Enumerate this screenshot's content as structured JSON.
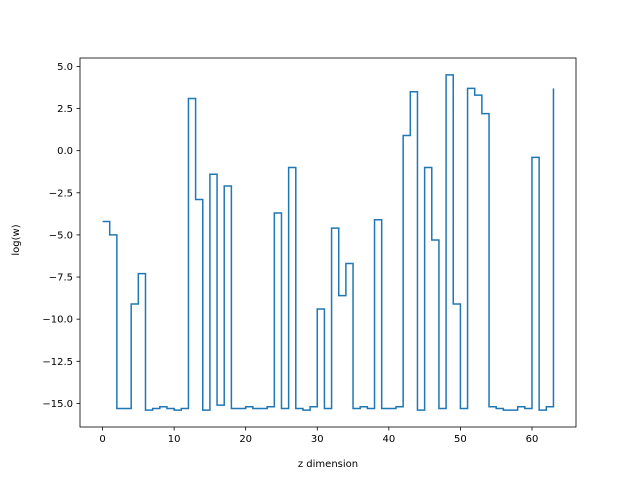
{
  "chart_data": {
    "type": "line",
    "drawstyle": "steps-post",
    "xlabel": "z dimension",
    "ylabel": "log(w)",
    "xlim": [
      -3.15,
      66.15
    ],
    "ylim": [
      -16.4,
      5.5
    ],
    "xticks": [
      0,
      10,
      20,
      30,
      40,
      50,
      60
    ],
    "yticks": [
      -15.0,
      -12.5,
      -10.0,
      -7.5,
      -5.0,
      -2.5,
      0.0,
      2.5,
      5.0
    ],
    "xtick_labels": [
      "0",
      "10",
      "20",
      "30",
      "40",
      "50",
      "60"
    ],
    "ytick_labels": [
      "−15.0",
      "−12.5",
      "−10.0",
      "−7.5",
      "−5.0",
      "−2.5",
      "0.0",
      "2.5",
      "5.0"
    ],
    "grid": false,
    "line_color": "#1f77b4",
    "series": [
      {
        "x": [
          0,
          1,
          2,
          3,
          4,
          5,
          6,
          7,
          8,
          9,
          10,
          11,
          12,
          13,
          14,
          15,
          16,
          17,
          18,
          19,
          20,
          21,
          22,
          23,
          24,
          25,
          26,
          27,
          28,
          29,
          30,
          31,
          32,
          33,
          34,
          35,
          36,
          37,
          38,
          39,
          40,
          41,
          42,
          43,
          44,
          45,
          46,
          47,
          48,
          49,
          50,
          51,
          52,
          53,
          54,
          55,
          56,
          57,
          58,
          59,
          60,
          61,
          62,
          63
        ],
        "values": [
          -4.2,
          -5.0,
          -15.3,
          -15.3,
          -9.1,
          -7.3,
          -15.4,
          -15.3,
          -15.2,
          -15.3,
          -15.4,
          -15.3,
          3.1,
          -2.9,
          -15.4,
          -1.4,
          -15.1,
          -2.1,
          -15.3,
          -15.3,
          -15.2,
          -15.3,
          -15.3,
          -15.2,
          -3.7,
          -15.3,
          -1.0,
          -15.3,
          -15.4,
          -15.2,
          -9.4,
          -15.3,
          -4.6,
          -8.6,
          -6.7,
          -15.3,
          -15.2,
          -15.3,
          -4.1,
          -15.3,
          -15.3,
          -15.2,
          0.9,
          3.5,
          -15.4,
          -1.0,
          -5.3,
          -15.3,
          4.5,
          -9.1,
          -15.3,
          3.7,
          3.3,
          2.2,
          -15.2,
          -15.3,
          -15.4,
          -15.4,
          -15.2,
          -15.3,
          -0.4,
          -15.4,
          -15.2,
          3.7
        ]
      }
    ]
  }
}
